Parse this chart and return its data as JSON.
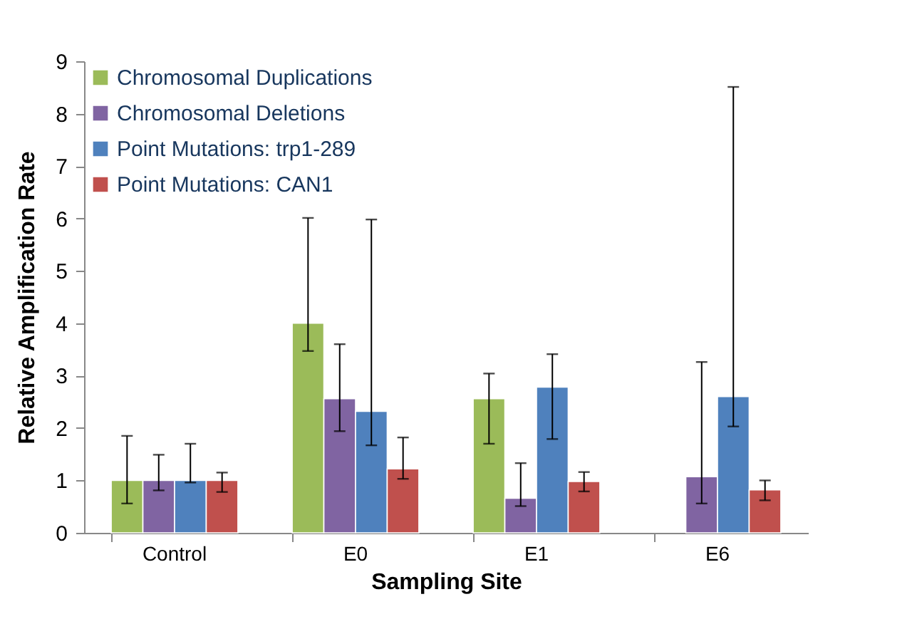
{
  "chart_data": {
    "type": "bar",
    "xlabel": "Sampling Site",
    "ylabel": "Relative Amplification Rate",
    "categories": [
      "Control",
      "E0",
      "E1",
      "E6"
    ],
    "series": [
      {
        "name": "Chromosomal Duplications",
        "color": "#9bbb59",
        "values": [
          1,
          4.0,
          2.56,
          null
        ],
        "errors": [
          [
            0.56,
            1.85
          ],
          [
            3.47,
            6.01
          ],
          [
            1.7,
            3.04
          ],
          null
        ]
      },
      {
        "name": "Chromosomal Deletions",
        "color": "#8064a2",
        "values": [
          1,
          2.56,
          0.66,
          1.07
        ],
        "errors": [
          [
            0.81,
            1.49
          ],
          [
            1.94,
            3.6
          ],
          [
            0.51,
            1.33
          ],
          [
            0.56,
            3.26
          ]
        ]
      },
      {
        "name": "Point Mutations: trp1-289",
        "color": "#4f81bd",
        "values": [
          1,
          2.32,
          2.78,
          2.6
        ],
        "errors": [
          [
            0.96,
            1.7
          ],
          [
            1.67,
            5.98
          ],
          [
            1.79,
            3.41
          ],
          [
            2.03,
            8.51
          ]
        ]
      },
      {
        "name": "Point Mutations: CAN1",
        "color": "#c0504d",
        "values": [
          1,
          1.22,
          0.98,
          0.82
        ],
        "errors": [
          [
            0.78,
            1.15
          ],
          [
            1.03,
            1.82
          ],
          [
            0.79,
            1.16
          ],
          [
            0.62,
            1.0
          ]
        ]
      }
    ],
    "ylim": [
      0,
      9
    ],
    "yticks": [
      0,
      1,
      2,
      3,
      4,
      5,
      6,
      7,
      8,
      9
    ],
    "grid": false,
    "legend": "top left"
  }
}
